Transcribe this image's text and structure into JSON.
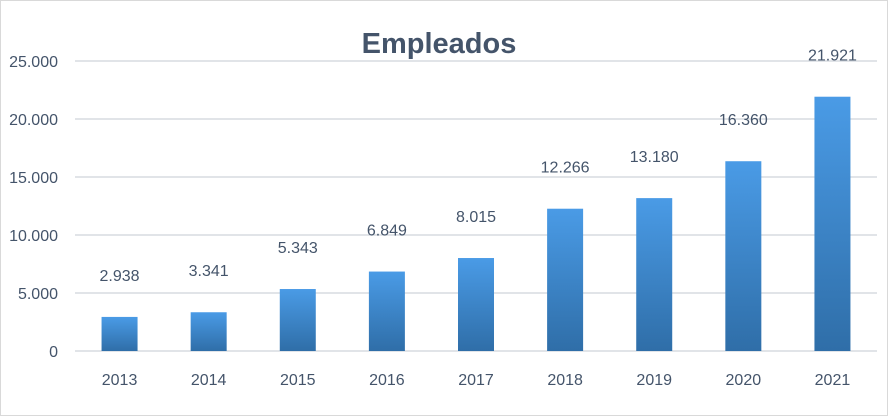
{
  "chart_data": {
    "type": "bar",
    "title": "Empleados",
    "xlabel": "",
    "ylabel": "",
    "categories": [
      "2013",
      "2014",
      "2015",
      "2016",
      "2017",
      "2018",
      "2019",
      "2020",
      "2021"
    ],
    "values": [
      2938,
      3341,
      5343,
      6849,
      8015,
      12266,
      13180,
      16360,
      21921
    ],
    "data_labels": [
      "2.938",
      "3.341",
      "5.343",
      "6.849",
      "8.015",
      "12.266",
      "13.180",
      "16.360",
      "21.921"
    ],
    "ylim": [
      0,
      25000
    ],
    "yticks": [
      0,
      5000,
      10000,
      15000,
      20000,
      25000
    ],
    "ytick_labels": [
      "0",
      "5.000",
      "10.000",
      "15.000",
      "20.000",
      "25.000"
    ],
    "grid": true,
    "legend": "none",
    "colors": {
      "bar_top": "#4a9be6",
      "bar_bottom": "#2f6ea8",
      "text": "#44546a",
      "grid": "#e1e4e8"
    }
  }
}
